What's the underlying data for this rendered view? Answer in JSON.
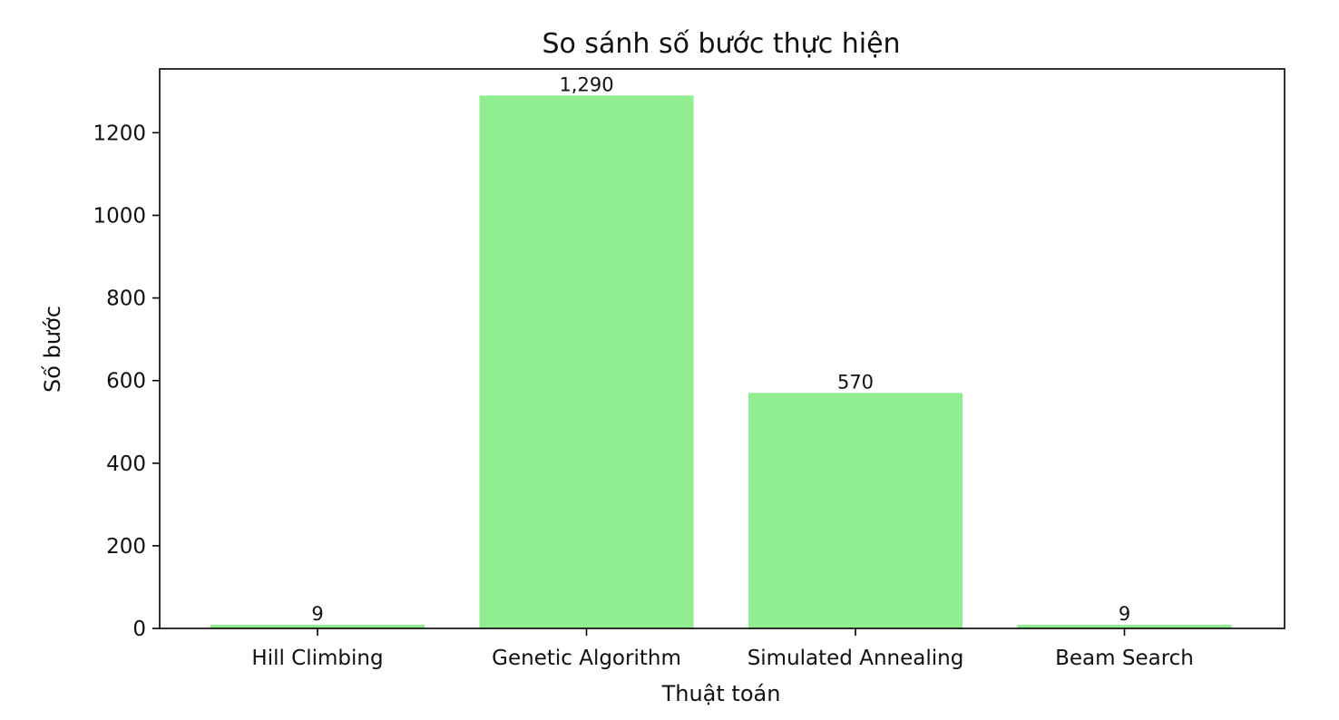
{
  "chart_data": {
    "type": "bar",
    "title": "So sánh số bước thực hiện",
    "xlabel": "Thuật toán",
    "ylabel": "Số bước",
    "categories": [
      "Hill Climbing",
      "Genetic Algorithm",
      "Simulated Annealing",
      "Beam Search"
    ],
    "values": [
      9,
      1290,
      570,
      9
    ],
    "value_labels": [
      "9",
      "1,290",
      "570",
      "9"
    ],
    "ylim": [
      0,
      1354.5
    ],
    "yticks": [
      0,
      200,
      400,
      600,
      800,
      1000,
      1200
    ],
    "grid": false,
    "bar_color": "#90ee90"
  }
}
